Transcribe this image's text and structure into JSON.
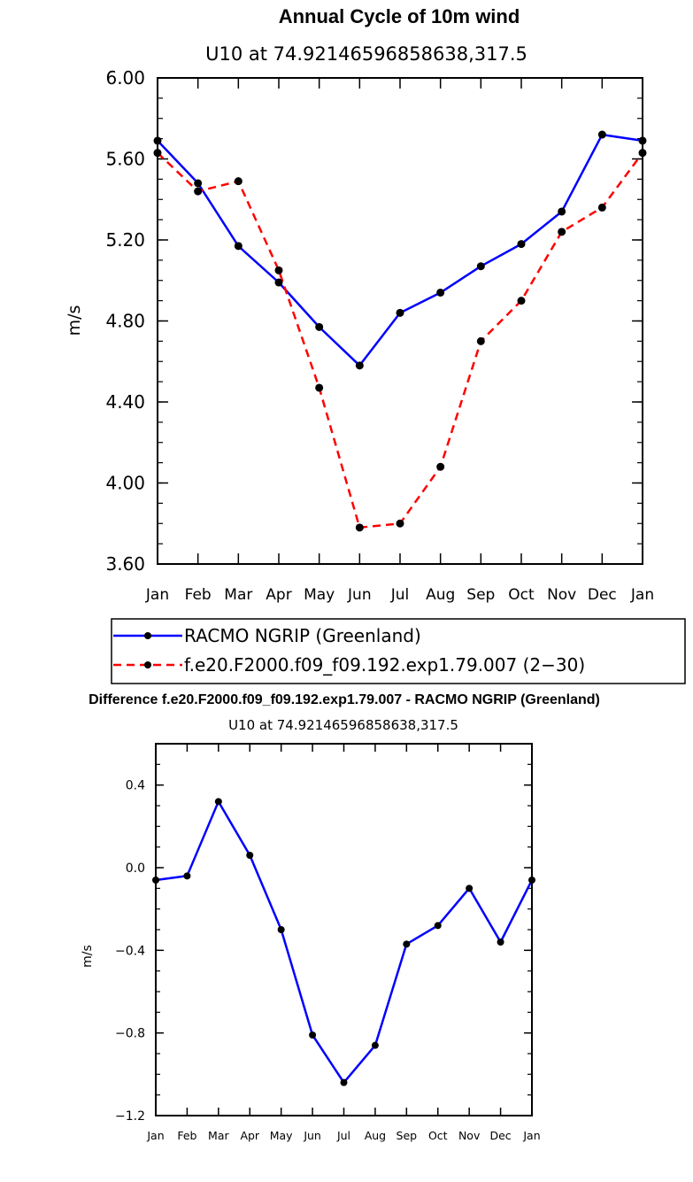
{
  "chart_data": [
    {
      "type": "line",
      "title": "Annual Cycle of 10m wind",
      "subtitle": "U10  at  74.92146596858638,317.5",
      "ylabel": "m/s",
      "xlabel": "",
      "ylim": [
        3.6,
        6.0
      ],
      "yticks": [
        "6.00",
        "5.60",
        "5.20",
        "4.80",
        "4.40",
        "4.00",
        "3.60"
      ],
      "ytick_values": [
        6.0,
        5.6,
        5.2,
        4.8,
        4.4,
        4.0,
        3.6
      ],
      "categories": [
        "Jan",
        "Feb",
        "Mar",
        "Apr",
        "May",
        "Jun",
        "Jul",
        "Aug",
        "Sep",
        "Oct",
        "Nov",
        "Dec",
        "Jan"
      ],
      "series": [
        {
          "name": "RACMO NGRIP (Greenland)",
          "color": "#0000ff",
          "dash": "solid",
          "values": [
            5.69,
            5.48,
            5.17,
            4.99,
            4.77,
            4.58,
            4.84,
            4.94,
            5.07,
            5.18,
            5.34,
            5.72,
            5.69
          ]
        },
        {
          "name": "f.e20.F2000.f09_f09.192.exp1.79.007 (2−30)",
          "color": "#ff0000",
          "dash": "dashed",
          "values": [
            5.63,
            5.44,
            5.49,
            5.05,
            4.47,
            3.78,
            3.8,
            4.08,
            4.7,
            4.9,
            5.24,
            5.36,
            5.63
          ]
        }
      ]
    },
    {
      "type": "line",
      "title": "Difference f.e20.F2000.f09_f09.192.exp1.79.007 - RACMO NGRIP (Greenland)",
      "subtitle": "U10  at  74.92146596858638,317.5",
      "ylabel": "m/s",
      "xlabel": "",
      "ylim": [
        -1.2,
        0.6
      ],
      "yticks": [
        "0.4",
        "0.0",
        "−0.4",
        "−0.8",
        "−1.2"
      ],
      "ytick_values": [
        0.4,
        0.0,
        -0.4,
        -0.8,
        -1.2
      ],
      "categories": [
        "Jan",
        "Feb",
        "Mar",
        "Apr",
        "May",
        "Jun",
        "Jul",
        "Aug",
        "Sep",
        "Oct",
        "Nov",
        "Dec",
        "Jan"
      ],
      "series": [
        {
          "name": "Difference",
          "color": "#0000ff",
          "dash": "solid",
          "values": [
            -0.06,
            -0.04,
            0.32,
            0.06,
            -0.3,
            -0.81,
            -1.04,
            -0.86,
            -0.37,
            -0.28,
            -0.1,
            -0.36,
            -0.06
          ]
        }
      ]
    }
  ]
}
